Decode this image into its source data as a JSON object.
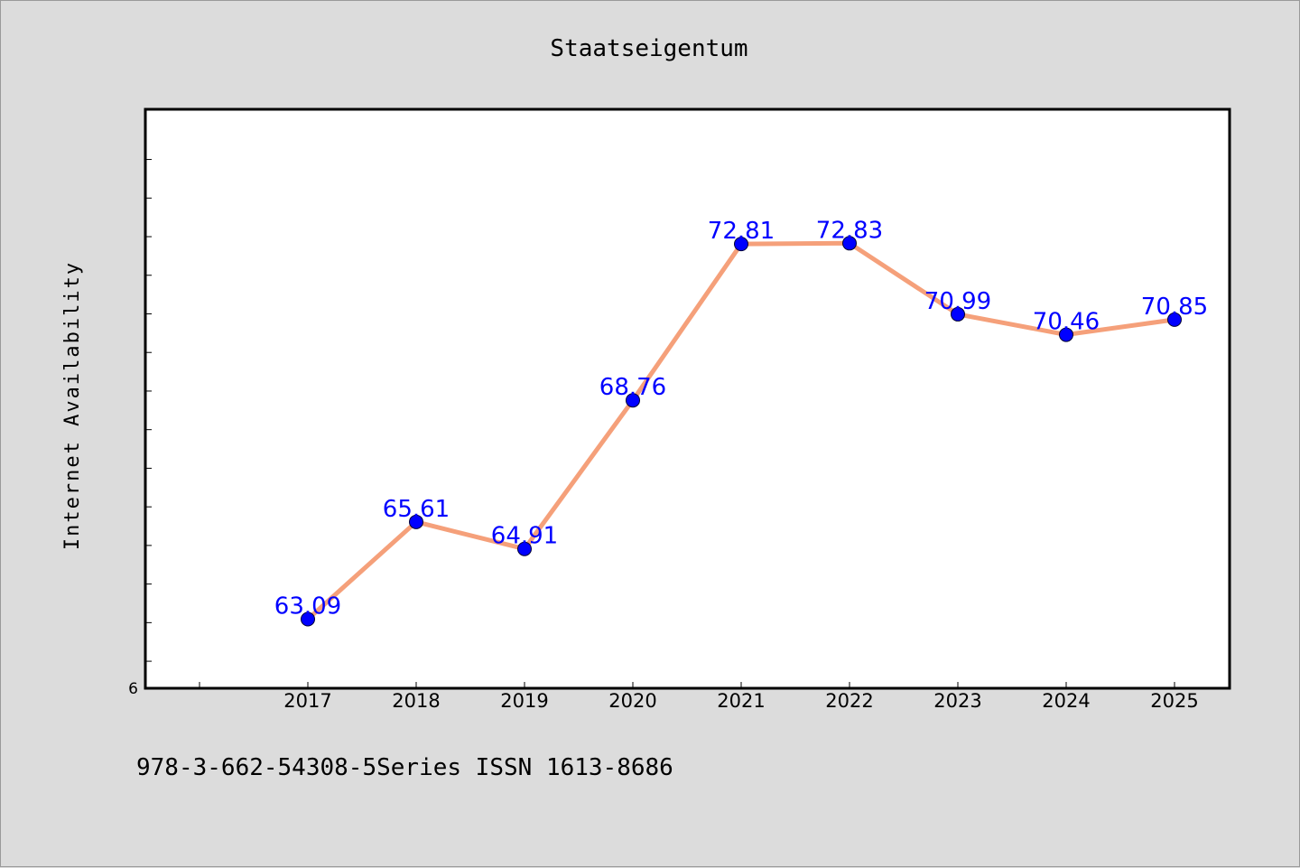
{
  "footer_text": "978-3-662-54308-5Series ISSN 1613-8686",
  "chart_data": {
    "type": "line",
    "title": "Staatseigentum",
    "xlabel": "",
    "ylabel": "Internet Availability",
    "categories": [
      "2017",
      "2018",
      "2019",
      "2020",
      "2021",
      "2022",
      "2023",
      "2024",
      "2025"
    ],
    "series": [
      {
        "values": [
          63.09,
          65.61,
          64.91,
          68.76,
          72.81,
          72.83,
          70.99,
          70.46,
          70.85
        ],
        "labels": [
          "63.09",
          "65.61",
          "64.91",
          "68.76",
          "72.81",
          "72.83",
          "70.99",
          "70.46",
          "70.85"
        ],
        "line_color": "#f5a07a",
        "marker_color": "#0000ff",
        "label_color": "#0000ff"
      }
    ],
    "ylim": [
      61.3,
      76.3
    ],
    "y_ticks": [
      62,
      63,
      64,
      65,
      66,
      67,
      68,
      69,
      70,
      71,
      72,
      73,
      74,
      75
    ],
    "y_tick_label": "6",
    "grid": false,
    "legend": "none"
  }
}
